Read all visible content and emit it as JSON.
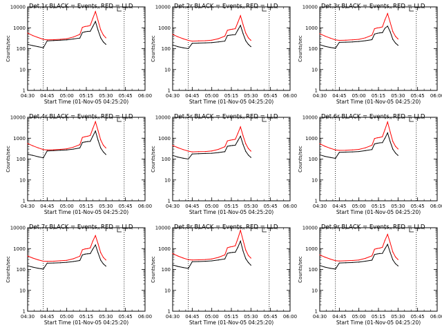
{
  "chart_data": [
    {
      "type": "line",
      "title": "Det 1r BLACK = Events, RED = LLD",
      "xlabel": "Start Time (01-Nov-05 04:25:20)",
      "ylabel": "Counts/sec",
      "yscale": "log",
      "ylim": [
        1,
        10000
      ],
      "xlim": [
        "04:30",
        "06:00"
      ],
      "x_ticks": [
        "04:30",
        "04:45",
        "05:00",
        "05:15",
        "05:30",
        "05:45",
        "06:00"
      ],
      "y_ticks": [
        "1",
        "10",
        "100",
        "1000",
        "10000"
      ],
      "grid": false,
      "vlines": [
        "04:42",
        "05:44"
      ],
      "legend": "none",
      "x": [
        "04:30",
        "04:34",
        "04:38",
        "04:42",
        "04:45",
        "04:50",
        "04:55",
        "05:00",
        "05:05",
        "05:10",
        "05:12",
        "05:14",
        "05:16",
        "05:18",
        "05:20",
        "05:22",
        "05:24",
        "05:26",
        "05:28",
        "05:30"
      ],
      "series": [
        {
          "color": "#000000",
          "values": [
            160,
            140,
            125,
            110,
            235,
            245,
            255,
            265,
            290,
            320,
            590,
            640,
            670,
            680,
            1150,
            2000,
            760,
            330,
            210,
            160
          ]
        },
        {
          "color": "#ff0000",
          "values": [
            560,
            420,
            340,
            280,
            265,
            270,
            280,
            300,
            360,
            480,
            1050,
            1150,
            1200,
            1300,
            2800,
            6000,
            2200,
            800,
            450,
            330
          ]
        }
      ]
    },
    {
      "type": "line",
      "title": "Det 2r BLACK = Events, RED = LLD",
      "xlabel": "Start Time (01-Nov-05 04:25:20)",
      "ylabel": "Counts/sec",
      "yscale": "log",
      "ylim": [
        1,
        10000
      ],
      "xlim": [
        "04:30",
        "06:00"
      ],
      "x_ticks": [
        "04:30",
        "04:45",
        "05:00",
        "05:15",
        "05:30",
        "05:45",
        "06:00"
      ],
      "y_ticks": [
        "1",
        "10",
        "100",
        "1000",
        "10000"
      ],
      "grid": false,
      "vlines": [
        "04:42",
        "05:44"
      ],
      "legend": "none",
      "x": [
        "04:30",
        "04:34",
        "04:38",
        "04:42",
        "04:45",
        "04:50",
        "04:55",
        "05:00",
        "05:05",
        "05:10",
        "05:12",
        "05:14",
        "05:16",
        "05:18",
        "05:20",
        "05:22",
        "05:24",
        "05:26",
        "05:28",
        "05:30"
      ],
      "series": [
        {
          "color": "#000000",
          "values": [
            150,
            125,
            110,
            100,
            180,
            185,
            190,
            195,
            210,
            230,
            420,
            440,
            460,
            470,
            780,
            1300,
            520,
            240,
            160,
            125
          ]
        },
        {
          "color": "#ff0000",
          "values": [
            480,
            370,
            300,
            250,
            230,
            235,
            240,
            255,
            300,
            400,
            760,
            820,
            860,
            900,
            1800,
            3800,
            1400,
            560,
            330,
            250
          ]
        }
      ]
    },
    {
      "type": "line",
      "title": "Det 3r BLACK = Events, RED = LLD",
      "xlabel": "Start Time (01-Nov-05 04:25:20)",
      "ylabel": "Counts/sec",
      "yscale": "log",
      "ylim": [
        1,
        10000
      ],
      "xlim": [
        "04:30",
        "06:00"
      ],
      "x_ticks": [
        "04:30",
        "04:45",
        "05:00",
        "05:15",
        "05:30",
        "05:45",
        "06:00"
      ],
      "y_ticks": [
        "1",
        "10",
        "100",
        "1000",
        "10000"
      ],
      "grid": false,
      "vlines": [
        "04:42",
        "05:44"
      ],
      "legend": "none",
      "x": [
        "04:30",
        "04:34",
        "04:38",
        "04:42",
        "04:45",
        "04:50",
        "04:55",
        "05:00",
        "05:05",
        "05:10",
        "05:12",
        "05:14",
        "05:16",
        "05:18",
        "05:20",
        "05:22",
        "05:24",
        "05:26",
        "05:28",
        "05:30"
      ],
      "series": [
        {
          "color": "#000000",
          "values": [
            155,
            130,
            115,
            105,
            200,
            205,
            210,
            220,
            240,
            270,
            500,
            540,
            570,
            580,
            950,
            1200,
            640,
            280,
            185,
            145
          ]
        },
        {
          "color": "#ff0000",
          "values": [
            520,
            400,
            320,
            265,
            250,
            255,
            265,
            280,
            330,
            440,
            900,
            980,
            1020,
            1100,
            2400,
            4800,
            1800,
            660,
            390,
            290
          ]
        }
      ]
    },
    {
      "type": "line",
      "title": "Det 4r BLACK = Events, RED = LLD",
      "xlabel": "Start Time (01-Nov-05 04:25:20)",
      "ylabel": "Counts/sec",
      "yscale": "log",
      "ylim": [
        1,
        10000
      ],
      "xlim": [
        "04:30",
        "06:00"
      ],
      "x_ticks": [
        "04:30",
        "04:45",
        "05:00",
        "05:15",
        "05:30",
        "05:45",
        "06:00"
      ],
      "y_ticks": [
        "1",
        "10",
        "100",
        "1000",
        "10000"
      ],
      "grid": false,
      "vlines": [
        "04:42",
        "05:44"
      ],
      "legend": "none",
      "x": [
        "04:30",
        "04:34",
        "04:38",
        "04:42",
        "04:45",
        "04:50",
        "04:55",
        "05:00",
        "05:05",
        "05:10",
        "05:12",
        "05:14",
        "05:16",
        "05:18",
        "05:20",
        "05:22",
        "05:24",
        "05:26",
        "05:28",
        "05:30"
      ],
      "series": [
        {
          "color": "#000000",
          "values": [
            170,
            150,
            130,
            115,
            245,
            255,
            265,
            275,
            300,
            340,
            620,
            660,
            690,
            700,
            1250,
            2200,
            800,
            340,
            220,
            165
          ]
        },
        {
          "color": "#ff0000",
          "values": [
            560,
            430,
            345,
            285,
            275,
            280,
            290,
            310,
            370,
            490,
            1080,
            1180,
            1240,
            1350,
            2900,
            6200,
            2300,
            830,
            460,
            340
          ]
        }
      ]
    },
    {
      "type": "line",
      "title": "Det 5r BLACK = Events, RED = LLD",
      "xlabel": "Start Time (01-Nov-05 04:25:20)",
      "ylabel": "Counts/sec",
      "yscale": "log",
      "ylim": [
        1,
        10000
      ],
      "xlim": [
        "04:30",
        "06:00"
      ],
      "x_ticks": [
        "04:30",
        "04:45",
        "05:00",
        "05:15",
        "05:30",
        "05:45",
        "06:00"
      ],
      "y_ticks": [
        "1",
        "10",
        "100",
        "1000",
        "10000"
      ],
      "grid": false,
      "vlines": [
        "04:42",
        "05:44"
      ],
      "legend": "none",
      "x": [
        "04:30",
        "04:34",
        "04:38",
        "04:42",
        "04:45",
        "04:50",
        "04:55",
        "05:00",
        "05:05",
        "05:10",
        "05:12",
        "05:14",
        "05:16",
        "05:18",
        "05:20",
        "05:22",
        "05:24",
        "05:26",
        "05:28",
        "05:30"
      ],
      "series": [
        {
          "color": "#000000",
          "values": [
            150,
            125,
            110,
            100,
            175,
            180,
            185,
            190,
            205,
            225,
            410,
            430,
            450,
            460,
            760,
            1250,
            500,
            235,
            155,
            120
          ]
        },
        {
          "color": "#ff0000",
          "values": [
            450,
            350,
            285,
            240,
            220,
            225,
            230,
            245,
            290,
            390,
            740,
            800,
            840,
            880,
            1700,
            3500,
            1300,
            540,
            320,
            240
          ]
        }
      ]
    },
    {
      "type": "line",
      "title": "Det 6r BLACK = Events, RED = LLD",
      "xlabel": "Start Time (01-Nov-05 04:25:20)",
      "ylabel": "Counts/sec",
      "yscale": "log",
      "ylim": [
        1,
        10000
      ],
      "xlim": [
        "04:30",
        "06:00"
      ],
      "x_ticks": [
        "04:30",
        "04:45",
        "05:00",
        "05:15",
        "05:30",
        "05:45",
        "06:00"
      ],
      "y_ticks": [
        "1",
        "10",
        "100",
        "1000",
        "10000"
      ],
      "grid": false,
      "vlines": [
        "04:42",
        "05:44"
      ],
      "legend": "none",
      "x": [
        "04:30",
        "04:34",
        "04:38",
        "04:42",
        "04:45",
        "04:50",
        "04:55",
        "05:00",
        "05:05",
        "05:10",
        "05:12",
        "05:14",
        "05:16",
        "05:18",
        "05:20",
        "05:22",
        "05:24",
        "05:26",
        "05:28",
        "05:30"
      ],
      "series": [
        {
          "color": "#000000",
          "values": [
            160,
            135,
            120,
            108,
            210,
            215,
            220,
            230,
            255,
            285,
            530,
            570,
            600,
            610,
            1000,
            1800,
            680,
            300,
            195,
            150
          ]
        },
        {
          "color": "#ff0000",
          "values": [
            540,
            410,
            330,
            275,
            260,
            265,
            275,
            290,
            345,
            460,
            960,
            1040,
            1090,
            1180,
            2600,
            6000,
            2000,
            700,
            410,
            305
          ]
        }
      ]
    },
    {
      "type": "line",
      "title": "Det 7r BLACK = Events, RED = LLD",
      "xlabel": "Start Time (01-Nov-05 04:25:20)",
      "ylabel": "Counts/sec",
      "yscale": "log",
      "ylim": [
        1,
        10000
      ],
      "xlim": [
        "04:30",
        "06:00"
      ],
      "x_ticks": [
        "04:30",
        "04:45",
        "05:00",
        "05:15",
        "05:30",
        "05:45",
        "06:00"
      ],
      "y_ticks": [
        "1",
        "10",
        "100",
        "1000",
        "10000"
      ],
      "grid": false,
      "vlines": [
        "04:42",
        "05:44"
      ],
      "legend": "none",
      "x": [
        "04:30",
        "04:34",
        "04:38",
        "04:42",
        "04:45",
        "04:50",
        "04:55",
        "05:00",
        "05:05",
        "05:10",
        "05:12",
        "05:14",
        "05:16",
        "05:18",
        "05:20",
        "05:22",
        "05:24",
        "05:26",
        "05:28",
        "05:30"
      ],
      "series": [
        {
          "color": "#000000",
          "values": [
            150,
            130,
            115,
            105,
            200,
            205,
            210,
            220,
            240,
            270,
            500,
            540,
            565,
            575,
            950,
            1500,
            620,
            280,
            185,
            145
          ]
        },
        {
          "color": "#ff0000",
          "values": [
            440,
            350,
            290,
            250,
            245,
            250,
            260,
            275,
            325,
            430,
            880,
            960,
            1000,
            1080,
            2300,
            4200,
            1700,
            640,
            380,
            285
          ]
        }
      ]
    },
    {
      "type": "line",
      "title": "Det 8r BLACK = Events, RED = LLD",
      "xlabel": "Start Time (01-Nov-05 04:25:20)",
      "ylabel": "Counts/sec",
      "yscale": "log",
      "ylim": [
        1,
        10000
      ],
      "xlim": [
        "04:30",
        "06:00"
      ],
      "x_ticks": [
        "04:30",
        "04:45",
        "05:00",
        "05:15",
        "05:30",
        "05:45",
        "06:00"
      ],
      "y_ticks": [
        "1",
        "10",
        "100",
        "1000",
        "10000"
      ],
      "grid": false,
      "vlines": [
        "04:42",
        "05:44"
      ],
      "legend": "none",
      "x": [
        "04:30",
        "04:34",
        "04:38",
        "04:42",
        "04:45",
        "04:50",
        "04:55",
        "05:00",
        "05:05",
        "05:10",
        "05:12",
        "05:14",
        "05:16",
        "05:18",
        "05:20",
        "05:22",
        "05:24",
        "05:26",
        "05:28",
        "05:30"
      ],
      "series": [
        {
          "color": "#000000",
          "values": [
            165,
            140,
            125,
            112,
            235,
            240,
            248,
            258,
            285,
            320,
            590,
            630,
            660,
            670,
            1150,
            2300,
            760,
            330,
            215,
            160
          ]
        },
        {
          "color": "#ff0000",
          "values": [
            580,
            440,
            355,
            295,
            285,
            290,
            300,
            320,
            380,
            500,
            1100,
            1200,
            1260,
            1370,
            3000,
            7500,
            2500,
            850,
            470,
            350
          ]
        }
      ]
    },
    {
      "type": "line",
      "title": "Det 9r BLACK = Events, RED = LLD",
      "xlabel": "Start Time (01-Nov-05 04:25:20)",
      "ylabel": "Counts/sec",
      "yscale": "log",
      "ylim": [
        1,
        10000
      ],
      "xlim": [
        "04:30",
        "06:00"
      ],
      "x_ticks": [
        "04:30",
        "04:45",
        "05:00",
        "05:15",
        "05:30",
        "05:45",
        "06:00"
      ],
      "y_ticks": [
        "1",
        "10",
        "100",
        "1000",
        "10000"
      ],
      "grid": false,
      "vlines": [
        "04:42",
        "05:44"
      ],
      "legend": "none",
      "x": [
        "04:30",
        "04:34",
        "04:38",
        "04:42",
        "04:45",
        "04:50",
        "04:55",
        "05:00",
        "05:05",
        "05:10",
        "05:12",
        "05:14",
        "05:16",
        "05:18",
        "05:20",
        "05:22",
        "05:24",
        "05:26",
        "05:28",
        "05:30"
      ],
      "series": [
        {
          "color": "#000000",
          "values": [
            155,
            130,
            115,
            105,
            205,
            210,
            215,
            225,
            250,
            280,
            520,
            555,
            580,
            590,
            980,
            1600,
            650,
            290,
            190,
            148
          ]
        },
        {
          "color": "#ff0000",
          "values": [
            500,
            390,
            315,
            265,
            255,
            260,
            270,
            285,
            340,
            450,
            930,
            1010,
            1060,
            1150,
            2500,
            4800,
            1900,
            690,
            400,
            300
          ]
        }
      ]
    }
  ]
}
